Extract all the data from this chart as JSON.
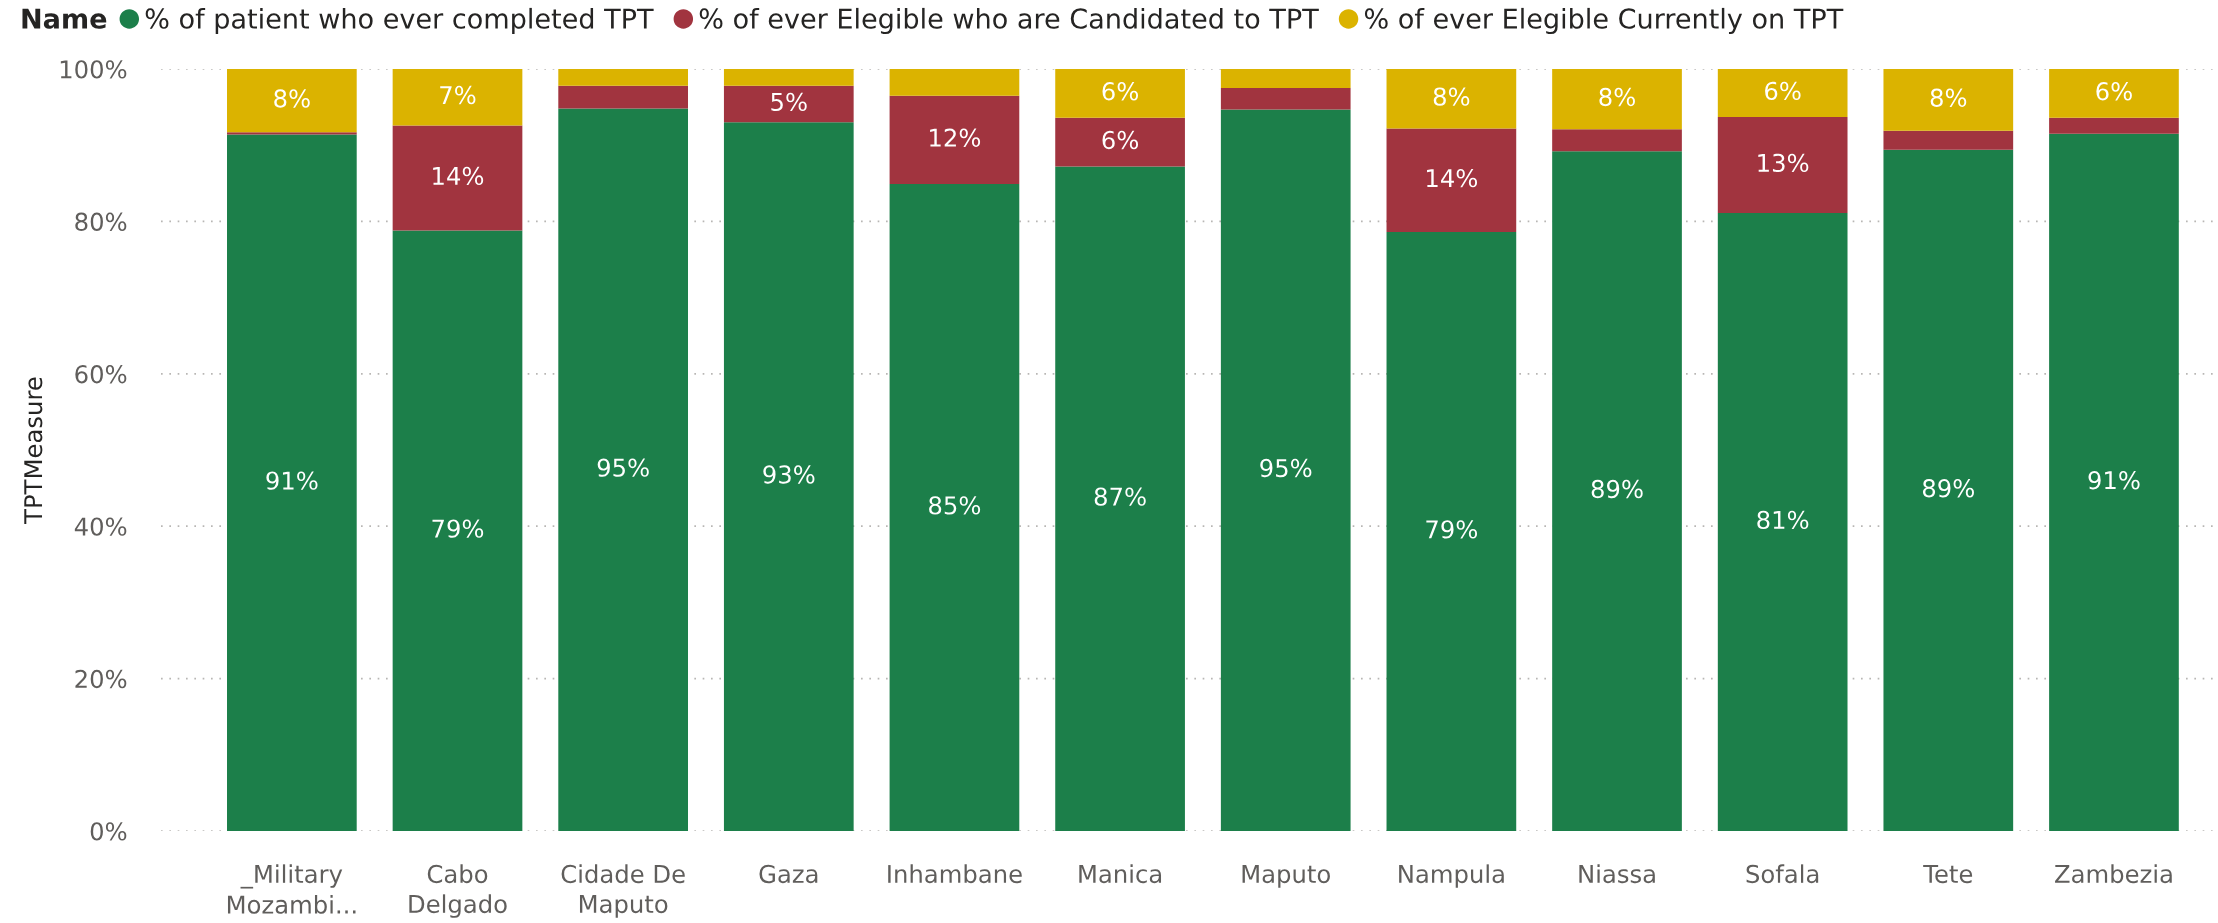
{
  "chart_data": {
    "type": "bar",
    "stacked": true,
    "legend_title": "Name",
    "ylabel": "TPTMeasure",
    "categories": [
      "_Military Mozambi...",
      "Cabo Delgado",
      "Cidade De Maputo",
      "Gaza",
      "Inhambane",
      "Manica",
      "Maputo",
      "Nampula",
      "Niassa",
      "Sofala",
      "Tete",
      "Zambezia"
    ],
    "series": [
      {
        "name": "% of patient who ever completed TPT",
        "color": "#1c7f4a",
        "values": [
          91.4,
          78.8,
          94.8,
          93.0,
          84.9,
          87.2,
          94.7,
          78.6,
          89.2,
          81.1,
          89.4,
          91.5
        ],
        "value_labels": [
          "91%",
          "79%",
          "95%",
          "93%",
          "85%",
          "87%",
          "95%",
          "79%",
          "89%",
          "81%",
          "89%",
          "91%"
        ]
      },
      {
        "name": "% of ever Elegible who are Candidated to TPT",
        "color": "#a1343f",
        "values": [
          0.3,
          13.8,
          3.0,
          4.8,
          11.6,
          6.4,
          2.8,
          13.6,
          2.9,
          12.6,
          2.5,
          2.1
        ],
        "value_labels": [
          null,
          "14%",
          null,
          "5%",
          "12%",
          "6%",
          null,
          "14%",
          null,
          "13%",
          null,
          null
        ]
      },
      {
        "name": "% of ever Elegible Currently on TPT",
        "color": "#dbb300",
        "values": [
          8.3,
          7.4,
          2.2,
          2.2,
          3.5,
          6.4,
          2.5,
          7.8,
          7.9,
          6.3,
          8.1,
          6.4
        ],
        "value_labels": [
          "8%",
          "7%",
          null,
          null,
          null,
          "6%",
          null,
          "8%",
          "8%",
          "6%",
          "8%",
          "6%"
        ]
      }
    ],
    "ylim": [
      0,
      100
    ],
    "yticks": [
      {
        "value": 0,
        "label": "0%"
      },
      {
        "value": 20,
        "label": "20%"
      },
      {
        "value": 40,
        "label": "40%"
      },
      {
        "value": 60,
        "label": "60%"
      },
      {
        "value": 80,
        "label": "80%"
      },
      {
        "value": 100,
        "label": "100%"
      }
    ],
    "grid": "y",
    "legend": "top left"
  }
}
